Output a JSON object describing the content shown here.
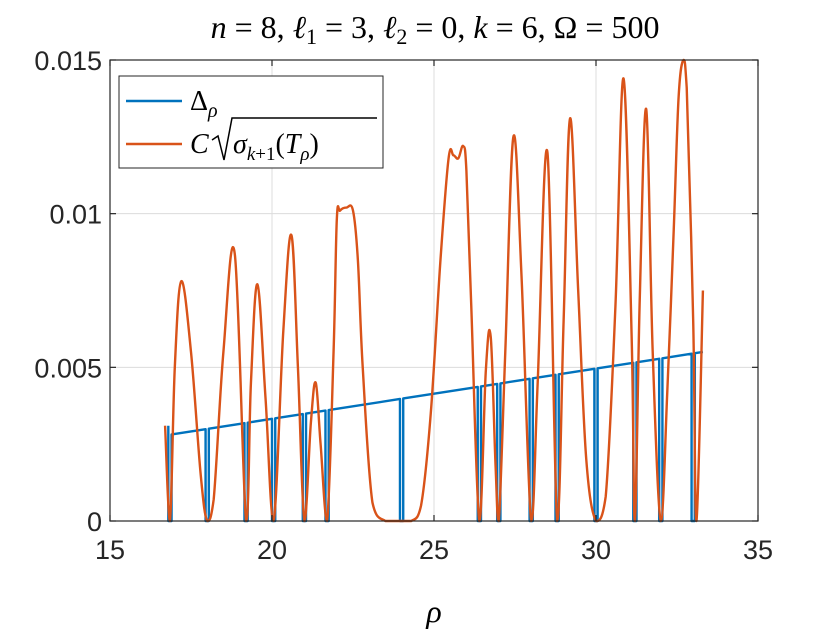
{
  "chart_data": {
    "type": "line",
    "title": "n = 8, ℓ1 = 3, ℓ2 = 0, k = 6, Ω = 500",
    "title_parts": {
      "n_label": "n",
      "n_value": "8",
      "l1_label": "ℓ",
      "l1_sub": "1",
      "l1_value": "3",
      "l2_label": "ℓ",
      "l2_sub": "2",
      "l2_value": "0",
      "k_label": "k",
      "k_value": "6",
      "omega_label": "Ω",
      "omega_value": "500"
    },
    "xlabel": "ρ",
    "ylabel": "",
    "xlim": [
      15,
      35
    ],
    "ylim": [
      0,
      0.015
    ],
    "xticks": [
      15,
      20,
      25,
      30,
      35
    ],
    "xtick_labels": [
      "15",
      "20",
      "25",
      "30",
      "35"
    ],
    "yticks": [
      0,
      0.005,
      0.01,
      0.015
    ],
    "ytick_labels": [
      "0",
      "0.005",
      "0.01",
      "0.015"
    ],
    "grid": true,
    "legend_position": "top-left",
    "series": [
      {
        "name": "Δρ",
        "color": "#0072BD",
        "x_range": [
          16.8,
          33.3
        ],
        "y_start": 0.0028,
        "y_end": 0.0055,
        "dip_x": [
          16.85,
          18.0,
          19.2,
          20.05,
          21.0,
          21.7,
          24.0,
          26.4,
          27.0,
          28.0,
          28.8,
          30.0,
          31.2,
          32.0,
          33.0
        ]
      },
      {
        "name": "C√σk+1(Tρ)",
        "color": "#D95319",
        "x": [
          16.7,
          16.85,
          17.0,
          17.2,
          17.5,
          17.8,
          18.0,
          18.2,
          18.5,
          18.85,
          19.2,
          19.35,
          19.55,
          19.8,
          20.05,
          20.35,
          20.6,
          20.8,
          21.0,
          21.2,
          21.35,
          21.5,
          21.7,
          21.9,
          22.0,
          22.1,
          22.3,
          22.5,
          22.65,
          22.8,
          23.1,
          23.5,
          23.9,
          24.3,
          24.6,
          24.9,
          25.2,
          25.45,
          25.6,
          25.75,
          25.9,
          26.0,
          26.15,
          26.4,
          26.6,
          26.75,
          26.9,
          27.0,
          27.2,
          27.45,
          27.7,
          28.0,
          28.2,
          28.5,
          28.8,
          29.0,
          29.2,
          29.45,
          29.7,
          30.0,
          30.3,
          30.6,
          30.85,
          31.1,
          31.2,
          31.35,
          31.55,
          31.75,
          32.0,
          32.2,
          32.4,
          32.55,
          32.7,
          32.8,
          33.0,
          33.1,
          33.3
        ],
        "y": [
          0.0031,
          0.0,
          0.005,
          0.0078,
          0.0055,
          0.0015,
          0.0,
          0.0007,
          0.0055,
          0.0087,
          0.0,
          0.0045,
          0.0077,
          0.004,
          0.0,
          0.0062,
          0.0093,
          0.005,
          0.0,
          0.0032,
          0.0045,
          0.0025,
          0.0,
          0.0055,
          0.0098,
          0.0101,
          0.0102,
          0.0101,
          0.0085,
          0.005,
          0.0006,
          0.0,
          0.0,
          0.0,
          0.0005,
          0.0035,
          0.0085,
          0.0118,
          0.0119,
          0.0118,
          0.0122,
          0.0114,
          0.007,
          0.0,
          0.0049,
          0.006,
          0.0018,
          0.0,
          0.0055,
          0.0125,
          0.008,
          0.0,
          0.0045,
          0.012,
          0.0,
          0.0065,
          0.0131,
          0.0075,
          0.002,
          0.0,
          0.0008,
          0.007,
          0.0144,
          0.006,
          0.0,
          0.0072,
          0.0134,
          0.0055,
          0.0,
          0.0042,
          0.0095,
          0.0138,
          0.015,
          0.0141,
          0.0065,
          0.0,
          0.0075
        ]
      }
    ]
  }
}
